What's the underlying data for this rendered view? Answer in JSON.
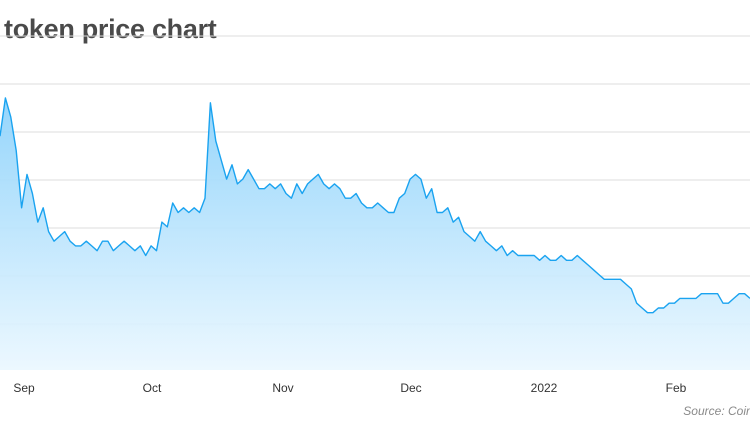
{
  "chart_data": {
    "type": "area",
    "title": "token price chart",
    "source": "Source: Coir",
    "x_tick_labels": [
      "Sep",
      "Oct",
      "Nov",
      "Dec",
      "2022",
      "Feb"
    ],
    "grid": "horizontal",
    "line_color": "#1aa3f0",
    "fill_color": "#8fd3fb",
    "y": [
      49,
      57,
      53,
      46,
      34,
      41,
      37,
      31,
      34,
      29,
      27,
      28,
      29,
      27,
      26,
      26,
      27,
      26,
      25,
      27,
      27,
      25,
      26,
      27,
      26,
      25,
      26,
      24,
      26,
      25,
      31,
      30,
      35,
      33,
      34,
      33,
      34,
      33,
      36,
      56,
      48,
      44,
      40,
      43,
      39,
      40,
      42,
      40,
      38,
      38,
      39,
      38,
      39,
      37,
      36,
      39,
      37,
      39,
      40,
      41,
      39,
      38,
      39,
      38,
      36,
      36,
      37,
      35,
      34,
      34,
      35,
      34,
      33,
      33,
      36,
      37,
      40,
      41,
      40,
      36,
      38,
      33,
      33,
      34,
      31,
      32,
      29,
      28,
      27,
      29,
      27,
      26,
      25,
      26,
      24,
      25,
      24,
      24,
      24,
      24,
      23,
      24,
      23,
      23,
      24,
      23,
      23,
      24,
      23,
      22,
      21,
      20,
      19,
      19,
      19,
      19,
      18,
      17,
      14,
      13,
      12,
      12,
      13,
      13,
      14,
      14,
      15,
      15,
      15,
      15,
      16,
      16,
      16,
      16,
      14,
      14,
      15,
      16,
      16,
      15
    ]
  }
}
